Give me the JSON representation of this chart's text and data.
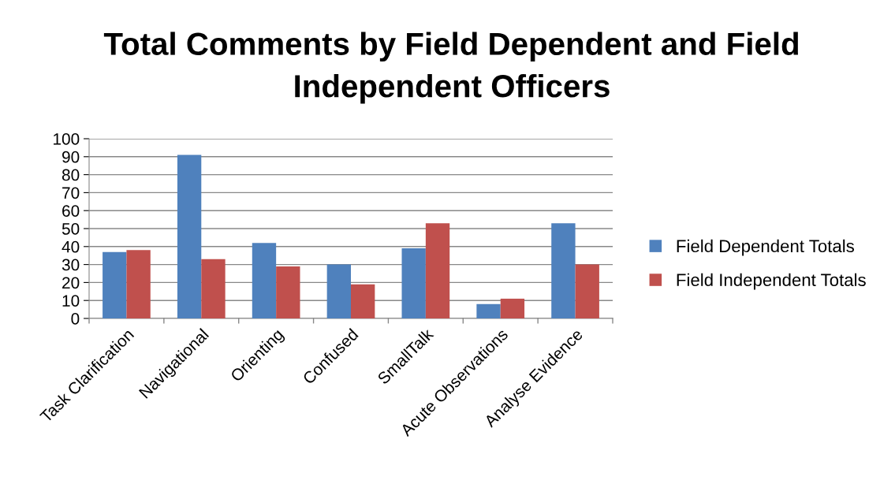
{
  "chart_data": {
    "type": "bar",
    "title": "Total Comments by Field Dependent and Field Independent Officers",
    "categories": [
      "Task Clarification",
      "Navigational",
      "Orienting",
      "Confused",
      "SmallTalk",
      "Acute Observations",
      "Analyse Evidence"
    ],
    "series": [
      {
        "name": "Field Dependent Totals",
        "color": "#4f81bd",
        "values": [
          37,
          91,
          42,
          30,
          39,
          8,
          53
        ]
      },
      {
        "name": "Field Independent Totals",
        "color": "#c0504d",
        "values": [
          38,
          33,
          29,
          19,
          53,
          11,
          30
        ]
      }
    ],
    "ylim": [
      0,
      100
    ],
    "yticks": [
      0,
      10,
      20,
      30,
      40,
      50,
      60,
      70,
      80,
      90,
      100
    ],
    "grid": "y",
    "legend": "right"
  }
}
